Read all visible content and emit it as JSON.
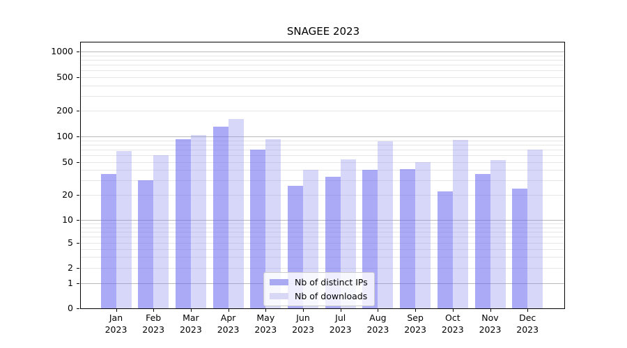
{
  "title": "SNAGEE 2023",
  "chart_data": {
    "type": "bar",
    "title": "SNAGEE 2023",
    "categories": [
      "Jan",
      "Feb",
      "Mar",
      "Apr",
      "May",
      "Jun",
      "Jul",
      "Aug",
      "Sep",
      "Oct",
      "Nov",
      "Dec"
    ],
    "category_year": "2023",
    "series": [
      {
        "name": "Nb of distinct IPs",
        "color": "rgba(104,104,240,0.56)",
        "solid_color": "#aaaaf2",
        "values": [
          36,
          30,
          93,
          130,
          70,
          26,
          33,
          40,
          41,
          22,
          36,
          24
        ]
      },
      {
        "name": "Nb of downloads",
        "color": "rgba(140,140,238,0.35)",
        "solid_color": "#d8d8f6",
        "values": [
          67,
          60,
          104,
          160,
          93,
          40,
          54,
          88,
          50,
          91,
          53,
          70
        ]
      }
    ],
    "xlabel": "",
    "ylabel": "",
    "yscale": "symlog-like",
    "ylim": [
      0,
      1400
    ],
    "yticks": [
      0,
      1,
      2,
      5,
      10,
      20,
      50,
      100,
      200,
      500,
      1000
    ],
    "decade_gridlines": [
      1,
      10,
      100,
      1000
    ],
    "minor_gridlines": [
      3,
      4,
      6,
      7,
      8,
      9,
      30,
      40,
      60,
      70,
      80,
      90,
      300,
      400,
      600,
      700,
      800,
      900
    ],
    "grid": true,
    "legend": {
      "location": "inside-bottom-center",
      "entries": [
        "Nb of distinct IPs",
        "Nb of downloads"
      ]
    },
    "colors": {
      "axis": "#000000",
      "decade_grid": "#b9b9b9",
      "minor_grid": "#e6e6e6",
      "background": "#ffffff"
    }
  }
}
